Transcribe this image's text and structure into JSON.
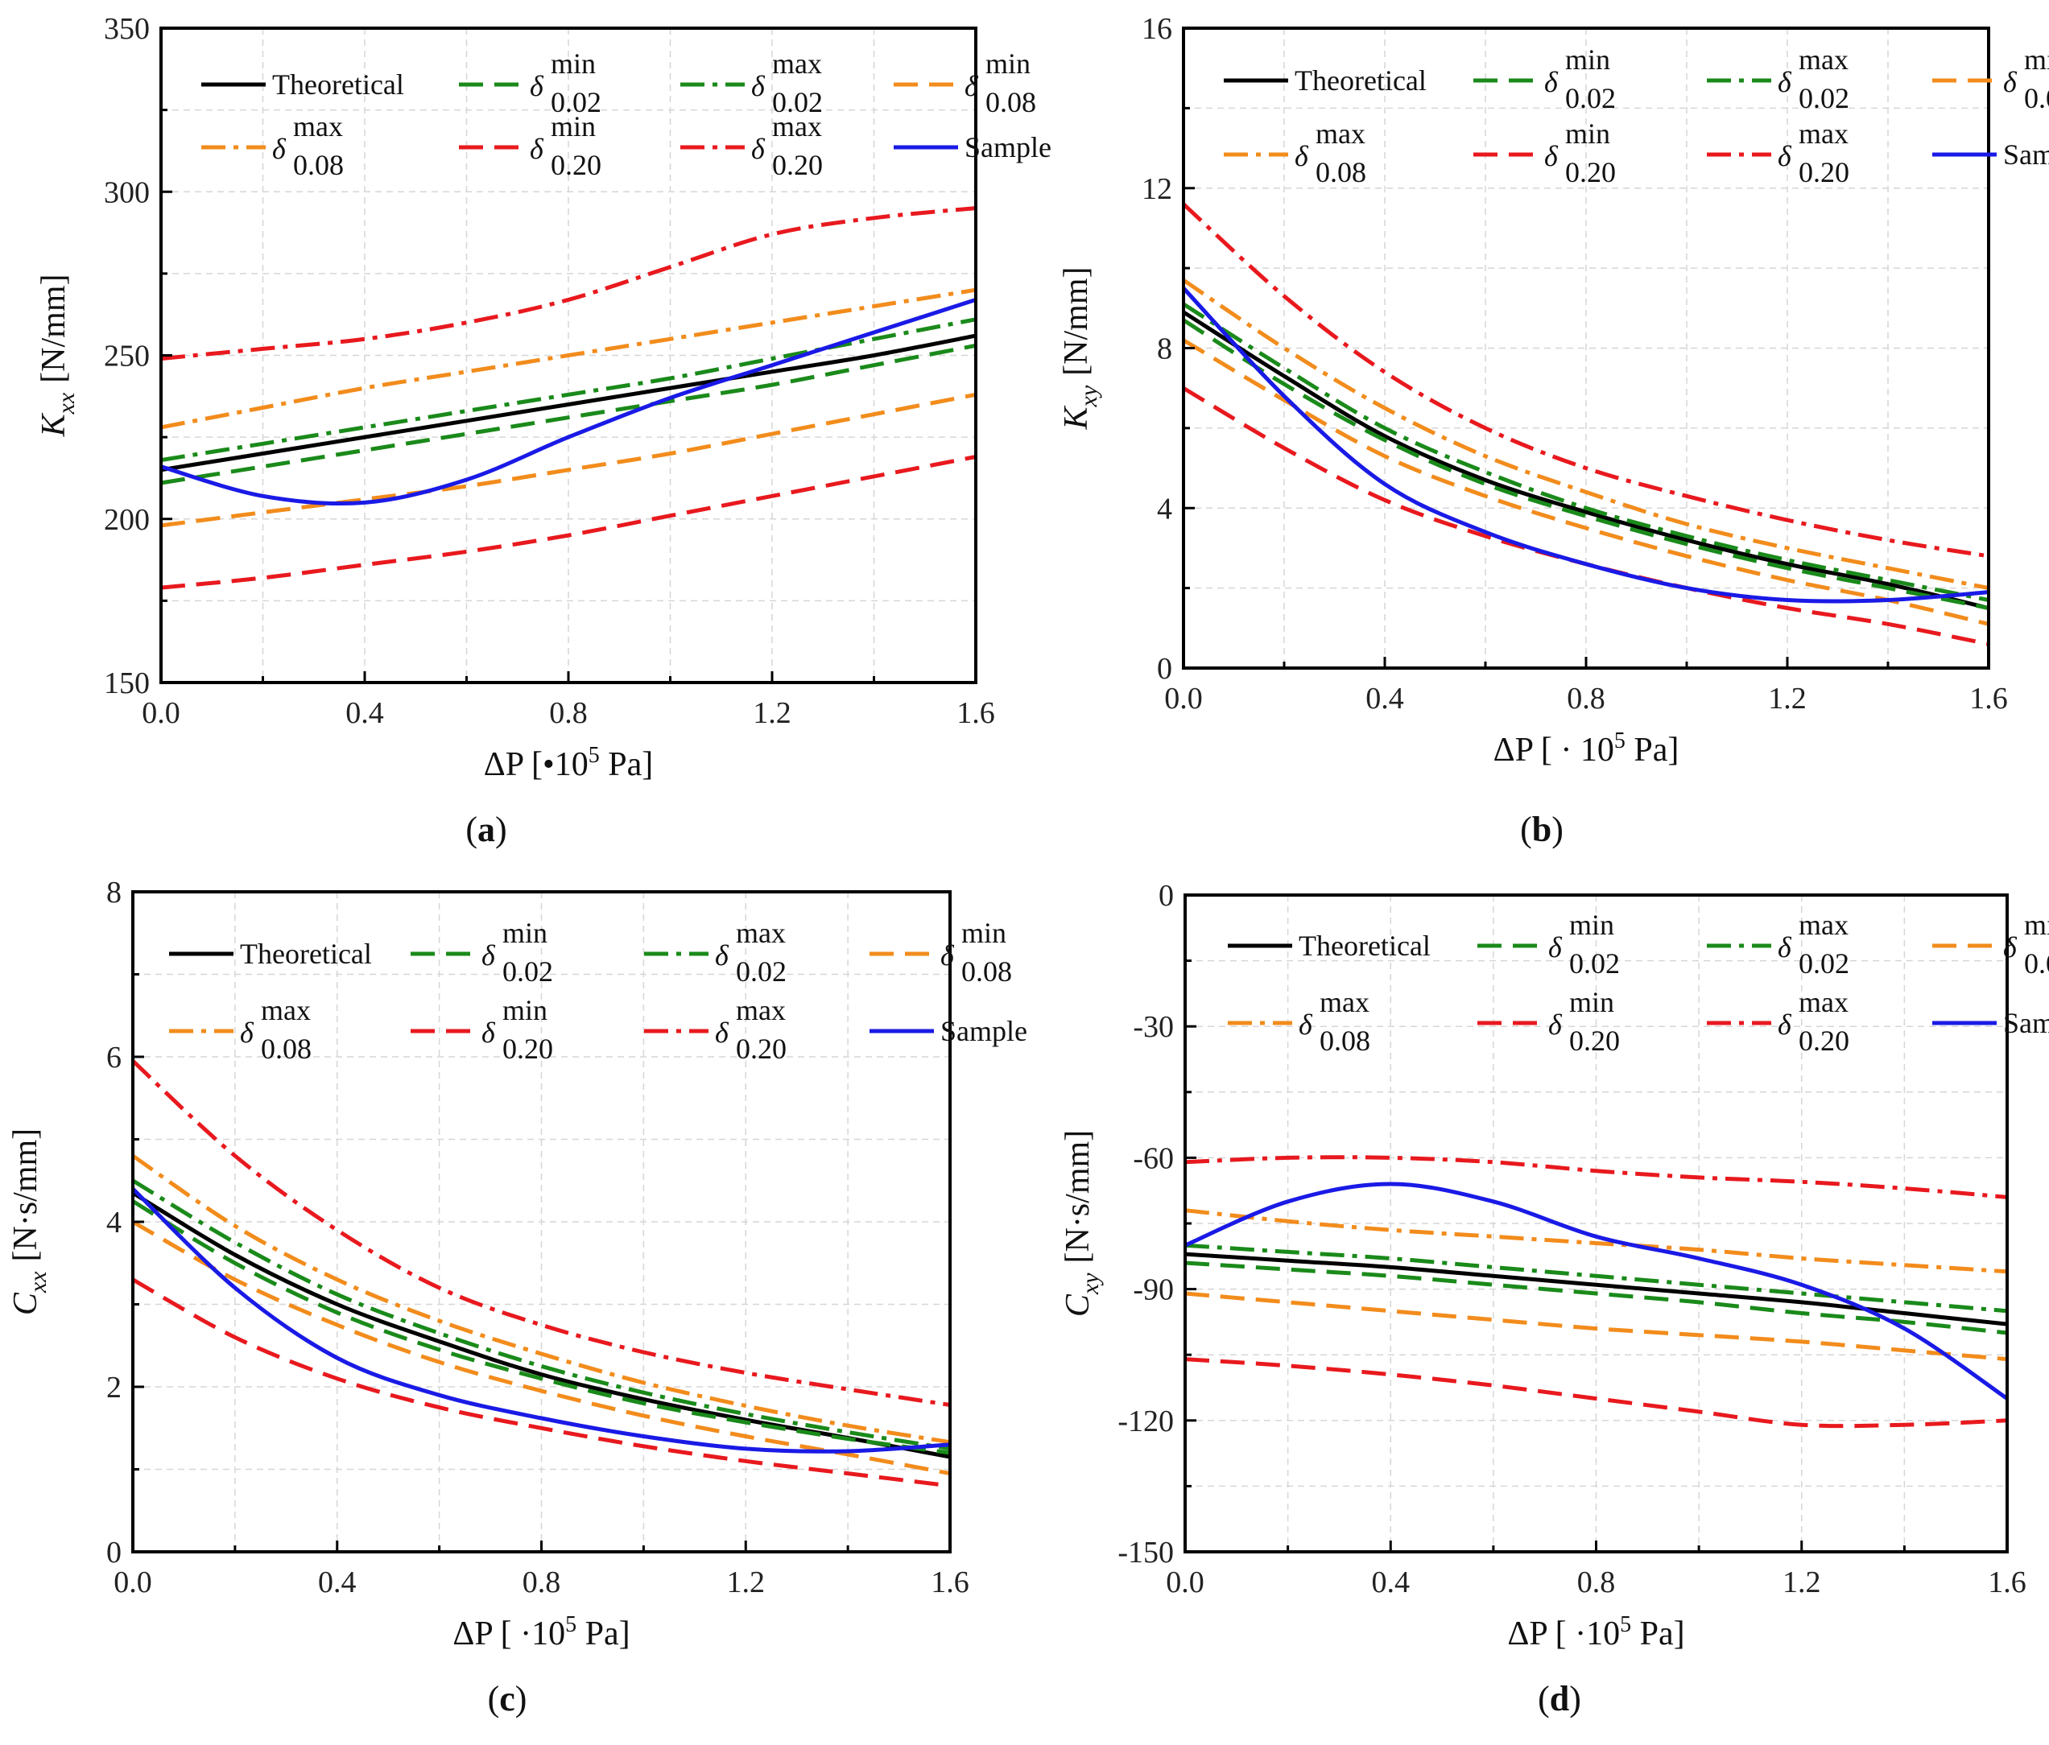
{
  "colors": {
    "theoretical": "#000000",
    "green": "#1a8a1a",
    "orange": "#f28c1c",
    "red": "#e8191e",
    "blue": "#1a1ae6"
  },
  "legend_entries": [
    {
      "key": "theoretical",
      "label": "Theoretical",
      "sym": "",
      "sup": "",
      "sub": "",
      "color": "theoretical",
      "dash": "solid"
    },
    {
      "key": "d002min",
      "label": "",
      "sym": "δ",
      "sup": "min",
      "sub": "0.02",
      "color": "green",
      "dash": "dash"
    },
    {
      "key": "d002max",
      "label": "",
      "sym": "δ",
      "sup": "max",
      "sub": "0.02",
      "color": "green",
      "dash": "dashdot"
    },
    {
      "key": "d008min",
      "label": "",
      "sym": "δ",
      "sup": "min",
      "sub": "0.08",
      "color": "orange",
      "dash": "dash"
    },
    {
      "key": "d008max",
      "label": "",
      "sym": "δ",
      "sup": "max",
      "sub": "0.08",
      "color": "orange",
      "dash": "dashdot"
    },
    {
      "key": "d020min",
      "label": "",
      "sym": "δ",
      "sup": "min",
      "sub": "0.20",
      "color": "red",
      "dash": "dash"
    },
    {
      "key": "d020max",
      "label": "",
      "sym": "δ",
      "sup": "max",
      "sub": "0.20",
      "color": "red",
      "dash": "dashdot"
    },
    {
      "key": "sample",
      "label": "Sample",
      "sym": "",
      "sup": "",
      "sub": "",
      "color": "blue",
      "dash": "solid"
    }
  ],
  "chart_data": [
    {
      "type": "line",
      "panel_label": "(a)",
      "ylabel": "K_xx [N/mm]",
      "ylabel_main": "K",
      "ylabel_sub": "xx",
      "ylabel_unit": "[N/mm]",
      "xlabel": "ΔP [•10^5 Pa]",
      "xlabel_main": "ΔP [•10",
      "xlabel_sup": "5",
      "xlabel_tail": " Pa]",
      "xlim": [
        0,
        1.6
      ],
      "ylim": [
        150,
        350
      ],
      "xticks": [
        0.0,
        0.4,
        0.8,
        1.2,
        1.6
      ],
      "xtick_labels": [
        "0.0",
        "0.4",
        "0.8",
        "1.2",
        "1.6"
      ],
      "yticks": [
        150,
        200,
        250,
        300,
        350
      ],
      "ytick_labels": [
        "150",
        "200",
        "250",
        "300",
        "350"
      ],
      "grid": true,
      "x": [
        0.0,
        0.2,
        0.4,
        0.6,
        0.8,
        1.0,
        1.2,
        1.4,
        1.6
      ],
      "series": [
        {
          "key": "theoretical",
          "values": [
            215,
            220,
            225,
            230,
            235,
            240,
            245,
            250,
            256
          ]
        },
        {
          "key": "d002min",
          "values": [
            211,
            216,
            221,
            226,
            231,
            236,
            241,
            247,
            253
          ]
        },
        {
          "key": "d002max",
          "values": [
            218,
            223,
            228,
            233,
            238,
            243,
            249,
            255,
            261
          ]
        },
        {
          "key": "d008min",
          "values": [
            198,
            202,
            206,
            210,
            215,
            220,
            226,
            232,
            238
          ]
        },
        {
          "key": "d008max",
          "values": [
            228,
            234,
            240,
            245,
            250,
            255,
            260,
            265,
            270
          ]
        },
        {
          "key": "d020min",
          "values": [
            179,
            182,
            186,
            190,
            195,
            201,
            207,
            213,
            219
          ]
        },
        {
          "key": "d020max",
          "values": [
            249,
            252,
            255,
            260,
            267,
            277,
            287,
            292,
            295
          ]
        },
        {
          "key": "sample",
          "values": [
            216,
            207,
            205,
            212,
            225,
            237,
            247,
            257,
            267
          ]
        }
      ]
    },
    {
      "type": "line",
      "panel_label": "(b)",
      "ylabel": "K_xy [N/mm]",
      "ylabel_main": "K",
      "ylabel_sub": "xy",
      "ylabel_unit": "[N/mm]",
      "xlabel": "ΔP [·10^5 Pa]",
      "xlabel_main": "ΔP [ · 10",
      "xlabel_sup": "5",
      "xlabel_tail": " Pa]",
      "xlim": [
        0,
        1.6
      ],
      "ylim": [
        0,
        16
      ],
      "xticks": [
        0.0,
        0.4,
        0.8,
        1.2,
        1.6
      ],
      "xtick_labels": [
        "0.0",
        "0.4",
        "0.8",
        "1.2",
        "1.6"
      ],
      "yticks": [
        0,
        4,
        8,
        12,
        16
      ],
      "ytick_labels": [
        "0",
        "4",
        "8",
        "12",
        "16"
      ],
      "grid": true,
      "x": [
        0.0,
        0.2,
        0.4,
        0.6,
        0.8,
        1.0,
        1.2,
        1.4,
        1.6
      ],
      "series": [
        {
          "key": "theoretical",
          "values": [
            8.9,
            7.3,
            5.8,
            4.7,
            3.9,
            3.2,
            2.6,
            2.1,
            1.5
          ]
        },
        {
          "key": "d002min",
          "values": [
            8.7,
            7.1,
            5.7,
            4.6,
            3.8,
            3.1,
            2.5,
            2.0,
            1.5
          ]
        },
        {
          "key": "d002max",
          "values": [
            9.1,
            7.5,
            6.0,
            4.9,
            4.0,
            3.3,
            2.7,
            2.2,
            1.7
          ]
        },
        {
          "key": "d008min",
          "values": [
            8.2,
            6.7,
            5.3,
            4.3,
            3.5,
            2.8,
            2.2,
            1.7,
            1.1
          ]
        },
        {
          "key": "d008max",
          "values": [
            9.7,
            8.0,
            6.5,
            5.3,
            4.4,
            3.6,
            3.0,
            2.5,
            2.0
          ]
        },
        {
          "key": "d020min",
          "values": [
            7.0,
            5.5,
            4.2,
            3.3,
            2.6,
            2.0,
            1.5,
            1.1,
            0.6
          ]
        },
        {
          "key": "d020max",
          "values": [
            11.6,
            9.3,
            7.4,
            6.0,
            5.0,
            4.3,
            3.7,
            3.2,
            2.8
          ]
        },
        {
          "key": "sample",
          "values": [
            9.5,
            6.8,
            4.6,
            3.4,
            2.6,
            2.0,
            1.7,
            1.7,
            1.9
          ]
        }
      ]
    },
    {
      "type": "line",
      "panel_label": "(c)",
      "ylabel": "C_xx [N·s/mm]",
      "ylabel_main": "C",
      "ylabel_sub": "xx",
      "ylabel_unit": "[N·s/mm]",
      "xlabel": "ΔP [·10^5 Pa]",
      "xlabel_main": "ΔP [ ·10",
      "xlabel_sup": "5",
      "xlabel_tail": " Pa]",
      "xlim": [
        0,
        1.6
      ],
      "ylim": [
        0,
        8
      ],
      "xticks": [
        0.0,
        0.4,
        0.8,
        1.2,
        1.6
      ],
      "xtick_labels": [
        "0.0",
        "0.4",
        "0.8",
        "1.2",
        "1.6"
      ],
      "yticks": [
        0,
        2,
        4,
        6,
        8
      ],
      "ytick_labels": [
        "0",
        "2",
        "4",
        "6",
        "8"
      ],
      "grid": true,
      "x": [
        0.0,
        0.2,
        0.4,
        0.6,
        0.8,
        1.0,
        1.2,
        1.4,
        1.6
      ],
      "series": [
        {
          "key": "theoretical",
          "values": [
            4.35,
            3.6,
            3.0,
            2.55,
            2.15,
            1.85,
            1.6,
            1.38,
            1.15
          ]
        },
        {
          "key": "d002min",
          "values": [
            4.25,
            3.5,
            2.9,
            2.45,
            2.1,
            1.8,
            1.57,
            1.37,
            1.2
          ]
        },
        {
          "key": "d002max",
          "values": [
            4.5,
            3.75,
            3.12,
            2.65,
            2.25,
            1.93,
            1.67,
            1.45,
            1.25
          ]
        },
        {
          "key": "d008min",
          "values": [
            4.0,
            3.3,
            2.75,
            2.3,
            1.95,
            1.65,
            1.4,
            1.18,
            0.95
          ]
        },
        {
          "key": "d008max",
          "values": [
            4.8,
            3.95,
            3.3,
            2.8,
            2.4,
            2.05,
            1.77,
            1.53,
            1.33
          ]
        },
        {
          "key": "d020min",
          "values": [
            3.3,
            2.6,
            2.1,
            1.75,
            1.5,
            1.28,
            1.1,
            0.95,
            0.8
          ]
        },
        {
          "key": "d020max",
          "values": [
            5.95,
            4.8,
            3.9,
            3.2,
            2.75,
            2.42,
            2.17,
            1.97,
            1.78
          ]
        },
        {
          "key": "sample",
          "values": [
            4.4,
            3.2,
            2.35,
            1.9,
            1.62,
            1.4,
            1.25,
            1.22,
            1.3
          ]
        }
      ]
    },
    {
      "type": "line",
      "panel_label": "(d)",
      "ylabel": "C_xy [N·s/mm]",
      "ylabel_main": "C",
      "ylabel_sub": "xy",
      "ylabel_unit": "[N·s/mm]",
      "xlabel": "ΔP [·10^5 Pa]",
      "xlabel_main": "ΔP [ ·10",
      "xlabel_sup": "5",
      "xlabel_tail": " Pa]",
      "xlim": [
        0,
        1.6
      ],
      "ylim": [
        -150,
        0
      ],
      "xticks": [
        0.0,
        0.4,
        0.8,
        1.2,
        1.6
      ],
      "xtick_labels": [
        "0.0",
        "0.4",
        "0.8",
        "1.2",
        "1.6"
      ],
      "yticks": [
        -150,
        -120,
        -90,
        -60,
        -30,
        0
      ],
      "ytick_labels": [
        "-150",
        "-120",
        "-90",
        "-60",
        "-30",
        "0"
      ],
      "grid": true,
      "x": [
        0.0,
        0.2,
        0.4,
        0.6,
        0.8,
        1.0,
        1.2,
        1.4,
        1.6
      ],
      "series": [
        {
          "key": "theoretical",
          "values": [
            -82,
            -83.5,
            -85,
            -87,
            -89,
            -91,
            -93,
            -95.5,
            -98
          ]
        },
        {
          "key": "d002min",
          "values": [
            -84,
            -85.5,
            -87,
            -89,
            -91,
            -93,
            -95.5,
            -97.5,
            -100
          ]
        },
        {
          "key": "d002max",
          "values": [
            -80,
            -81.5,
            -83,
            -85,
            -87,
            -89,
            -91,
            -93,
            -95
          ]
        },
        {
          "key": "d008min",
          "values": [
            -91,
            -93,
            -95,
            -97,
            -99,
            -100.5,
            -102,
            -104,
            -106
          ]
        },
        {
          "key": "d008max",
          "values": [
            -72,
            -74.5,
            -76.5,
            -78,
            -79.5,
            -81,
            -83,
            -84.5,
            -86
          ]
        },
        {
          "key": "d020min",
          "values": [
            -106,
            -107.5,
            -109.5,
            -112,
            -115,
            -118,
            -121,
            -121,
            -120
          ]
        },
        {
          "key": "d020max",
          "values": [
            -61,
            -60,
            -60,
            -61,
            -63,
            -64.5,
            -65.5,
            -67,
            -69
          ]
        },
        {
          "key": "sample",
          "values": [
            -80,
            -70,
            -66,
            -70,
            -78,
            -83,
            -89,
            -99,
            -115
          ]
        }
      ]
    }
  ]
}
